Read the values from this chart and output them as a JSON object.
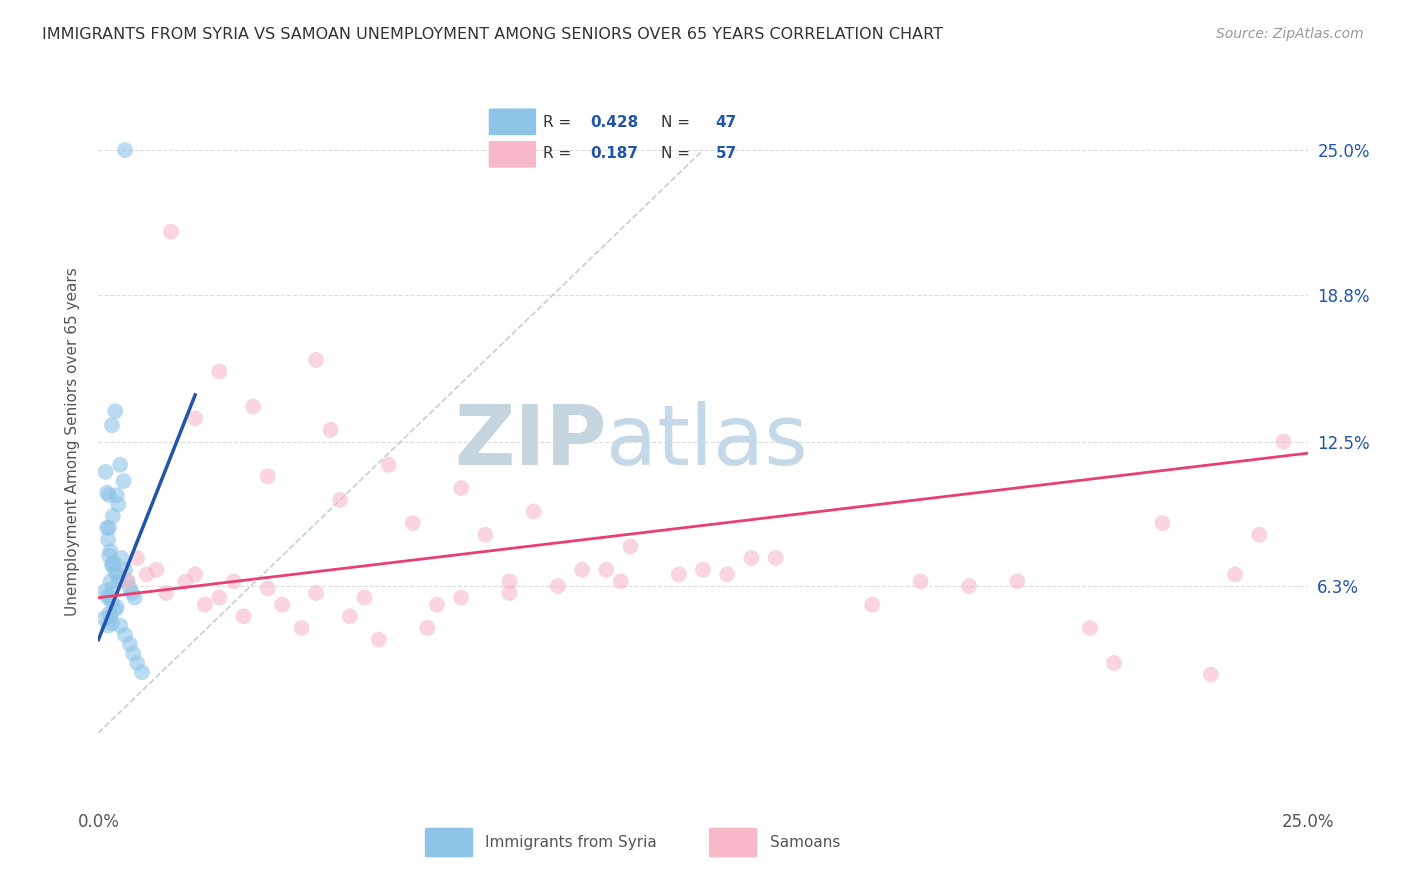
{
  "title": "IMMIGRANTS FROM SYRIA VS SAMOAN UNEMPLOYMENT AMONG SENIORS OVER 65 YEARS CORRELATION CHART",
  "source": "Source: ZipAtlas.com",
  "ylabel": "Unemployment Among Seniors over 65 years",
  "xlim": [
    0.0,
    25.0
  ],
  "ylim": [
    -3.0,
    28.0
  ],
  "ytick_labels": [
    "6.3%",
    "12.5%",
    "18.8%",
    "25.0%"
  ],
  "ytick_values": [
    6.3,
    12.5,
    18.8,
    25.0
  ],
  "xtick_positions": [
    0.0,
    6.25,
    12.5,
    18.75,
    25.0
  ],
  "xtick_labels": [
    "0.0%",
    "",
    "",
    "",
    "25.0%"
  ],
  "legend_label1": "Immigrants from Syria",
  "legend_label2": "Samoans",
  "R1": "0.428",
  "N1": "47",
  "R2": "0.187",
  "N2": "57",
  "color_blue": "#8EC4E8",
  "color_pink": "#F7B8C8",
  "color_blue_line": "#2255AA",
  "color_pink_line": "#E84070",
  "color_diagonal": "#AABBCC",
  "zip_color": "#AABBCC",
  "atlas_color": "#AABBCC",
  "background_color": "#FFFFFF",
  "grid_color": "#DDDDDD",
  "syria_x": [
    0.55,
    0.45,
    0.52,
    0.38,
    0.41,
    0.3,
    0.28,
    0.35,
    0.22,
    0.18,
    0.2,
    0.25,
    0.32,
    0.4,
    0.48,
    0.55,
    0.6,
    0.65,
    0.7,
    0.75,
    0.22,
    0.28,
    0.35,
    0.42,
    0.3,
    0.2,
    0.38,
    0.25,
    0.45,
    0.55,
    0.65,
    0.72,
    0.8,
    0.9,
    0.15,
    0.18,
    0.22,
    0.3,
    0.25,
    0.15,
    0.2,
    0.28,
    0.35,
    0.22,
    0.12,
    0.28,
    0.2
  ],
  "syria_y": [
    25.0,
    11.5,
    10.8,
    10.2,
    9.8,
    9.3,
    13.2,
    13.8,
    10.2,
    8.8,
    8.3,
    7.8,
    7.3,
    6.8,
    7.5,
    7.0,
    6.5,
    6.2,
    6.0,
    5.8,
    7.6,
    7.2,
    6.9,
    6.5,
    6.2,
    5.8,
    5.4,
    5.0,
    4.6,
    4.2,
    3.8,
    3.4,
    3.0,
    2.6,
    11.2,
    10.3,
    8.8,
    7.2,
    6.5,
    6.1,
    5.9,
    5.6,
    5.3,
    5.1,
    4.9,
    4.7,
    4.6
  ],
  "samoa_x": [
    1.5,
    4.5,
    2.5,
    3.2,
    4.8,
    6.0,
    7.5,
    9.0,
    11.0,
    13.5,
    2.0,
    3.5,
    5.0,
    6.5,
    8.0,
    10.0,
    12.0,
    0.8,
    1.2,
    2.0,
    2.8,
    3.5,
    4.5,
    5.5,
    7.0,
    8.5,
    10.5,
    13.0,
    16.0,
    19.0,
    22.0,
    24.0,
    1.0,
    1.8,
    2.5,
    3.8,
    5.2,
    6.8,
    8.5,
    10.8,
    14.0,
    18.0,
    21.0,
    23.5,
    0.6,
    1.4,
    2.2,
    3.0,
    4.2,
    5.8,
    7.5,
    9.5,
    12.5,
    17.0,
    20.5,
    23.0,
    24.5
  ],
  "samoa_y": [
    21.5,
    16.0,
    15.5,
    14.0,
    13.0,
    11.5,
    10.5,
    9.5,
    8.0,
    7.5,
    13.5,
    11.0,
    10.0,
    9.0,
    8.5,
    7.0,
    6.8,
    7.5,
    7.0,
    6.8,
    6.5,
    6.2,
    6.0,
    5.8,
    5.5,
    6.5,
    7.0,
    6.8,
    5.5,
    6.5,
    9.0,
    8.5,
    6.8,
    6.5,
    5.8,
    5.5,
    5.0,
    4.5,
    6.0,
    6.5,
    7.5,
    6.3,
    3.0,
    6.8,
    6.5,
    6.0,
    5.5,
    5.0,
    4.5,
    4.0,
    5.8,
    6.3,
    7.0,
    6.5,
    4.5,
    2.5,
    12.5
  ],
  "blue_line_x0": 0.0,
  "blue_line_y0": 4.0,
  "blue_line_x1": 2.0,
  "blue_line_y1": 14.5,
  "pink_line_x0": 0.0,
  "pink_line_y0": 5.8,
  "pink_line_x1": 25.0,
  "pink_line_y1": 12.0,
  "diag_x0": 0.0,
  "diag_y0": 0.0,
  "diag_x1": 12.5,
  "diag_y1": 25.0
}
